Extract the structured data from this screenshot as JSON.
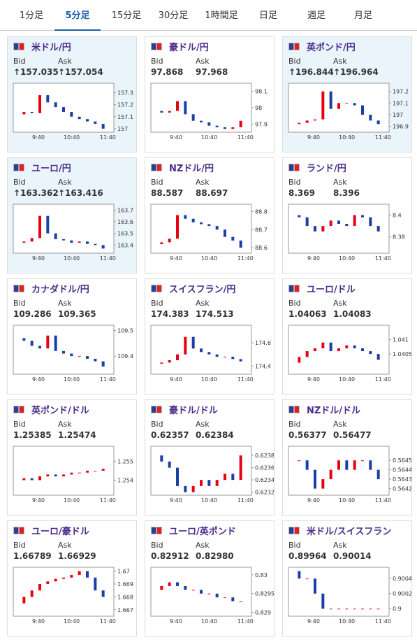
{
  "tabs": [
    "1分足",
    "5分足",
    "15分足",
    "30分足",
    "1時間足",
    "日足",
    "週足",
    "月足"
  ],
  "active_tab": 1,
  "cards": [
    {
      "title": "米ドル/円",
      "bid_label": "Bid",
      "ask_label": "Ask",
      "bid": "↑157.035",
      "ask": "↑157.054",
      "highlighted": true,
      "chart": {
        "ylim": [
          156.97,
          157.38
        ],
        "yticks": [
          157.3,
          157.2,
          157.1,
          157
        ],
        "xticks": [
          "9:40",
          "10:40",
          "11:40"
        ],
        "closes": [
          157.12,
          157.14,
          157.13,
          157.28,
          157.22,
          157.18,
          157.14,
          157.1,
          157.08,
          157.06,
          157.04,
          157.0
        ]
      }
    },
    {
      "title": "豪ドル/円",
      "bid_label": "Bid",
      "ask_label": "Ask",
      "bid": "97.868",
      "ask": "97.968",
      "highlighted": false,
      "chart": {
        "ylim": [
          97.85,
          98.15
        ],
        "yticks": [
          98.1,
          98,
          97.9
        ],
        "xticks": [
          "9:40",
          "10:40",
          "11:40"
        ],
        "closes": [
          97.98,
          97.97,
          97.98,
          98.04,
          97.96,
          97.92,
          97.91,
          97.89,
          97.88,
          97.87,
          97.88,
          97.92
        ]
      }
    },
    {
      "title": "英ポンド/円",
      "bid_label": "Bid",
      "ask_label": "Ask",
      "bid": "↑196.844",
      "ask": "↑196.964",
      "highlighted": true,
      "chart": {
        "ylim": [
          196.85,
          197.27
        ],
        "yticks": [
          197.2,
          197.1,
          197,
          196.9
        ],
        "xticks": [
          "9:40",
          "10:40",
          "11:40"
        ],
        "closes": [
          196.92,
          196.93,
          196.95,
          196.96,
          197.2,
          197.05,
          197.1,
          197.1,
          197.08,
          197.0,
          196.95,
          196.92
        ]
      }
    },
    {
      "title": "ユーロ/円",
      "bid_label": "Bid",
      "ask_label": "Ask",
      "bid": "↑163.362",
      "ask": "↑163.416",
      "highlighted": true,
      "chart": {
        "ylim": [
          163.33,
          163.75
        ],
        "yticks": [
          163.7,
          163.6,
          163.5,
          163.4
        ],
        "xticks": [
          "9:40",
          "10:40",
          "11:40"
        ],
        "closes": [
          163.42,
          163.43,
          163.46,
          163.65,
          163.5,
          163.45,
          163.44,
          163.42,
          163.43,
          163.41,
          163.4,
          163.37
        ]
      }
    },
    {
      "title": "NZドル/円",
      "bid_label": "Bid",
      "ask_label": "Ask",
      "bid": "88.587",
      "ask": "88.697",
      "highlighted": false,
      "chart": {
        "ylim": [
          88.57,
          88.84
        ],
        "yticks": [
          88.8,
          88.7,
          88.6
        ],
        "xticks": [
          "9:40",
          "10:40",
          "11:40"
        ],
        "closes": [
          88.62,
          88.63,
          88.65,
          88.78,
          88.76,
          88.74,
          88.73,
          88.72,
          88.7,
          88.66,
          88.64,
          88.6
        ]
      }
    },
    {
      "title": "ランド/円",
      "bid_label": "Bid",
      "ask_label": "Ask",
      "bid": "8.369",
      "ask": "8.396",
      "highlighted": false,
      "chart": {
        "ylim": [
          8.365,
          8.41
        ],
        "yticks": [
          8.4,
          8.38
        ],
        "xticks": [
          "9:40",
          "10:40",
          "11:40"
        ],
        "closes": [
          8.4,
          8.398,
          8.39,
          8.385,
          8.39,
          8.395,
          8.392,
          8.39,
          8.4,
          8.398,
          8.39,
          8.385
        ]
      }
    },
    {
      "title": "カナダドル/円",
      "bid_label": "Bid",
      "ask_label": "Ask",
      "bid": "109.286",
      "ask": "109.365",
      "highlighted": false,
      "chart": {
        "ylim": [
          109.33,
          109.52
        ],
        "yticks": [
          109.5,
          109.4
        ],
        "xticks": [
          "9:40",
          "10:40",
          "11:40"
        ],
        "closes": [
          109.47,
          109.46,
          109.44,
          109.43,
          109.48,
          109.42,
          109.41,
          109.4,
          109.4,
          109.39,
          109.38,
          109.36
        ]
      }
    },
    {
      "title": "スイスフラン/円",
      "bid_label": "Bid",
      "ask_label": "Ask",
      "bid": "174.383",
      "ask": "174.513",
      "highlighted": false,
      "chart": {
        "ylim": [
          174.33,
          174.75
        ],
        "yticks": [
          174.6,
          174.4
        ],
        "xticks": [
          "9:40",
          "10:40",
          "11:40"
        ],
        "closes": [
          174.42,
          174.43,
          174.45,
          174.5,
          174.65,
          174.55,
          174.52,
          174.5,
          174.48,
          174.48,
          174.46,
          174.44
        ]
      }
    },
    {
      "title": "ユーロ/ドル",
      "bid_label": "Bid",
      "ask_label": "Ask",
      "bid": "1.04063",
      "ask": "1.04083",
      "highlighted": false,
      "chart": {
        "ylim": [
          1.0398,
          1.0415
        ],
        "yticks": [
          1.041,
          1.0405
        ],
        "xticks": [
          "9:40",
          "10:40",
          "11:40"
        ],
        "closes": [
          1.0402,
          1.0404,
          1.0406,
          1.0407,
          1.0409,
          1.0406,
          1.0407,
          1.0408,
          1.0407,
          1.0406,
          1.0405,
          1.0403
        ]
      }
    },
    {
      "title": "英ポンド/ドル",
      "bid_label": "Bid",
      "ask_label": "Ask",
      "bid": "1.25385",
      "ask": "1.25474",
      "highlighted": false,
      "chart": {
        "ylim": [
          1.2532,
          1.2558
        ],
        "yticks": [
          1.255,
          1.254
        ],
        "xticks": [
          "9:40",
          "10:40",
          "11:40"
        ],
        "closes": [
          1.254,
          1.2541,
          1.254,
          1.2542,
          1.2543,
          1.2542,
          1.2543,
          1.2544,
          1.2544,
          1.2545,
          1.2545,
          1.2546
        ]
      }
    },
    {
      "title": "豪ドル/ドル",
      "bid_label": "Bid",
      "ask_label": "Ask",
      "bid": "0.62357",
      "ask": "0.62384",
      "highlighted": false,
      "chart": {
        "ylim": [
          0.62315,
          0.62395
        ],
        "yticks": [
          0.6238,
          0.6236,
          0.6234,
          0.6232
        ],
        "xticks": [
          "9:40",
          "10:40",
          "11:40"
        ],
        "closes": [
          0.6238,
          0.6237,
          0.6236,
          0.6233,
          0.6232,
          0.6233,
          0.6234,
          0.6233,
          0.6234,
          0.6235,
          0.6234,
          0.6238
        ]
      }
    },
    {
      "title": "NZドル/ドル",
      "bid_label": "Bid",
      "ask_label": "Ask",
      "bid": "0.56377",
      "ask": "0.56477",
      "highlighted": false,
      "chart": {
        "ylim": [
          0.56413,
          0.56465
        ],
        "yticks": [
          0.5645,
          0.5644,
          0.5643,
          0.5642
        ],
        "xticks": [
          "9:40",
          "10:40",
          "11:40"
        ],
        "closes": [
          0.5645,
          0.5645,
          0.5644,
          0.5642,
          0.5643,
          0.5644,
          0.5645,
          0.5644,
          0.5645,
          0.5645,
          0.5644,
          0.5643
        ]
      }
    },
    {
      "title": "ユーロ/豪ドル",
      "bid_label": "Bid",
      "ask_label": "Ask",
      "bid": "1.66789",
      "ask": "1.66929",
      "highlighted": false,
      "chart": {
        "ylim": [
          1.6665,
          1.6703
        ],
        "yticks": [
          1.67,
          1.669,
          1.668,
          1.667
        ],
        "xticks": [
          "9:40",
          "10:40",
          "11:40"
        ],
        "closes": [
          1.6675,
          1.668,
          1.6685,
          1.669,
          1.6692,
          1.6694,
          1.6695,
          1.6697,
          1.67,
          1.6695,
          1.6685,
          1.668
        ]
      }
    },
    {
      "title": "ユーロ/英ポンド",
      "bid_label": "Bid",
      "ask_label": "Ask",
      "bid": "0.82912",
      "ask": "0.82980",
      "highlighted": false,
      "chart": {
        "ylim": [
          0.8289,
          0.8302
        ],
        "yticks": [
          0.83,
          0.8295,
          0.829
        ],
        "xticks": [
          "9:40",
          "10:40",
          "11:40"
        ],
        "closes": [
          0.8296,
          0.8297,
          0.8298,
          0.8297,
          0.8296,
          0.8296,
          0.8295,
          0.8295,
          0.8294,
          0.8294,
          0.8293,
          0.8293
        ]
      }
    },
    {
      "title": "米ドル/スイスフラン",
      "bid_label": "Bid",
      "ask_label": "Ask",
      "bid": "0.89964",
      "ask": "0.90014",
      "highlighted": false,
      "chart": {
        "ylim": [
          0.8999,
          0.90055
        ],
        "yticks": [
          0.9004,
          0.9002,
          0.9
        ],
        "xticks": [
          "9:40",
          "10:40",
          "11:40"
        ],
        "closes": [
          0.9005,
          0.9004,
          0.9004,
          0.9002,
          0.9,
          0.9,
          0.9,
          0.9,
          0.9,
          0.9,
          0.9,
          0.9
        ]
      }
    }
  ]
}
